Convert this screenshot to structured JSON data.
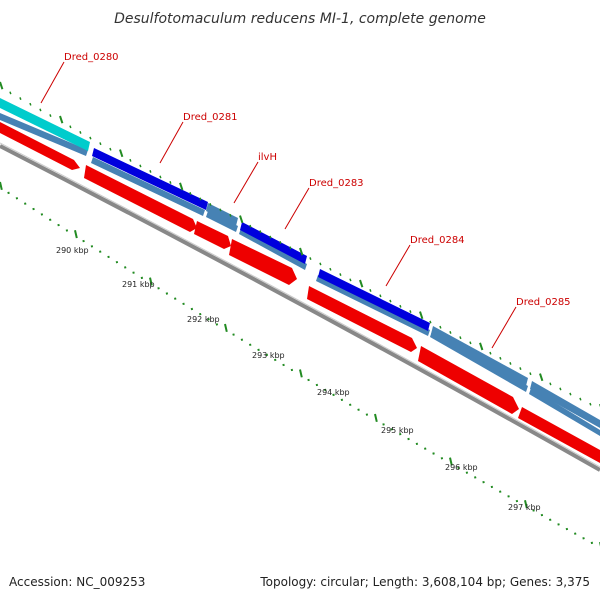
{
  "title": "Desulfotomaculum reducens MI-1, complete genome",
  "gene_labels": [
    {
      "text": "Dred_0280"
    },
    {
      "text": "Dred_0281"
    },
    {
      "text": "ilvH"
    },
    {
      "text": "Dred_0283"
    },
    {
      "text": "Dred_0284"
    },
    {
      "text": "Dred_0285"
    }
  ],
  "kbp_labels": [
    "290 kbp",
    "291 kbp",
    "292 kbp",
    "293 kbp",
    "294 kbp",
    "295 kbp",
    "296 kbp",
    "297 kbp"
  ],
  "footer": {
    "accession": "Accession: NC_009253",
    "topology": "Topology: circular; Length: 3,608,104 bp; Genes: 3,375"
  },
  "colors": {
    "cds_forward": "#0000dd",
    "cds_reverse": "#ee0000",
    "gc_track": "#4682b4",
    "other_track": "#00cccc",
    "tick": "#228b22",
    "label_line": "#cc0000",
    "backbone": "#888888"
  }
}
